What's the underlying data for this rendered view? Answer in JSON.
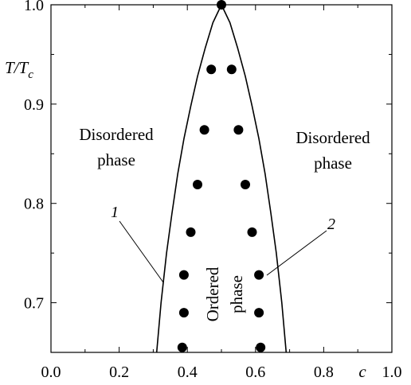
{
  "chart_data": {
    "type": "line",
    "xlabel": "c",
    "ylabel": "T/T_c",
    "xlim": [
      0.0,
      1.0
    ],
    "ylim": [
      0.65,
      1.0
    ],
    "x_ticks": [
      "0.0",
      "0.2",
      "0.4",
      "0.6",
      "0.8",
      "1.0"
    ],
    "y_ticks": [
      "0.7",
      "0.8",
      "0.9",
      "1.0"
    ],
    "grid": false,
    "series": [
      {
        "name": "1",
        "kind": "line",
        "x": [
          0.31,
          0.323,
          0.339,
          0.355,
          0.372,
          0.39,
          0.41,
          0.43,
          0.452,
          0.475,
          0.5,
          0.525,
          0.548,
          0.57,
          0.59,
          0.61,
          0.628,
          0.645,
          0.661,
          0.677,
          0.69
        ],
        "y": [
          0.65,
          0.7,
          0.75,
          0.79,
          0.83,
          0.865,
          0.898,
          0.928,
          0.956,
          0.982,
          1.0,
          0.982,
          0.956,
          0.928,
          0.898,
          0.865,
          0.83,
          0.79,
          0.75,
          0.7,
          0.65
        ]
      },
      {
        "name": "2",
        "kind": "scatter",
        "x": [
          0.5,
          0.47,
          0.53,
          0.45,
          0.55,
          0.43,
          0.57,
          0.41,
          0.59,
          0.39,
          0.61,
          0.39,
          0.61,
          0.385,
          0.615
        ],
        "y": [
          1.0,
          0.935,
          0.935,
          0.874,
          0.874,
          0.819,
          0.819,
          0.771,
          0.771,
          0.728,
          0.728,
          0.69,
          0.69,
          0.655,
          0.655
        ]
      }
    ],
    "annotations": {
      "region_left": [
        "Disordered",
        "phase"
      ],
      "region_right": [
        "Disordered",
        "phase"
      ],
      "region_center": [
        "Ordered",
        "phase"
      ],
      "curve_label_1": "1",
      "curve_label_2": "2"
    }
  }
}
